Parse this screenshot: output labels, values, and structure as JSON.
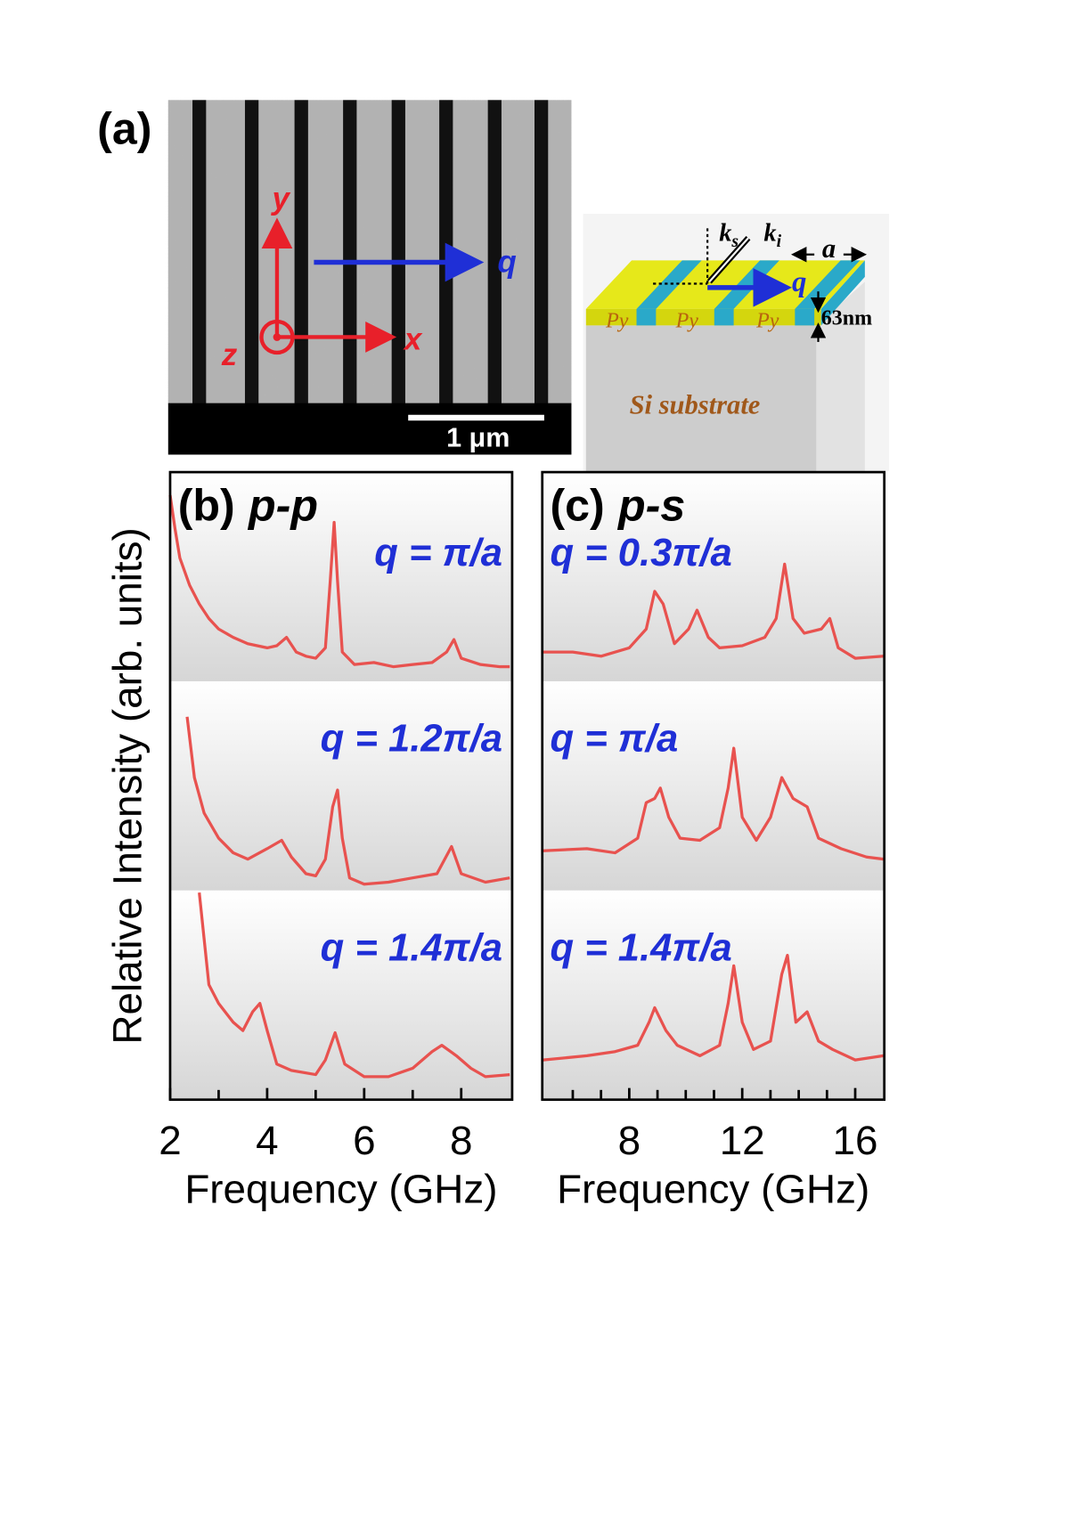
{
  "panel_a": {
    "label": "(a)",
    "scale_bar": "1 μm",
    "axis_x": "x",
    "axis_y": "y",
    "axis_z": "z",
    "wavevector": "q",
    "schematic": {
      "layer_labels": [
        "Py",
        "Py",
        "Py"
      ],
      "thickness": "63nm",
      "period": "a",
      "k_scattered": {
        "symbol": "k",
        "sub": "s"
      },
      "k_incident": {
        "symbol": "k",
        "sub": "i"
      },
      "wavevector": "q",
      "substrate": "Si substrate"
    }
  },
  "chart_data": [
    {
      "type": "line",
      "panel": "(b)",
      "title": "p-p",
      "xlabel": "Frequency (GHz)",
      "ylabel": "Relative Intensity (arb. units)",
      "xlim": [
        2,
        9.05
      ],
      "xticks": [
        2,
        4,
        6,
        8
      ],
      "xminorticks": [
        3,
        5,
        7
      ],
      "ylim": [
        0,
        1
      ],
      "series": [
        {
          "name": "q = π/a",
          "color": "#e8524f",
          "x": [
            2.0,
            2.1,
            2.2,
            2.4,
            2.6,
            2.8,
            3.0,
            3.3,
            3.6,
            4.0,
            4.2,
            4.4,
            4.6,
            4.8,
            5.0,
            5.2,
            5.3,
            5.38,
            5.45,
            5.55,
            5.8,
            6.2,
            6.6,
            7.0,
            7.4,
            7.7,
            7.85,
            8.0,
            8.4,
            8.8,
            9.0
          ],
          "values": [
            0.89,
            0.73,
            0.59,
            0.46,
            0.37,
            0.3,
            0.25,
            0.21,
            0.18,
            0.16,
            0.17,
            0.21,
            0.14,
            0.12,
            0.11,
            0.16,
            0.48,
            0.76,
            0.48,
            0.14,
            0.08,
            0.09,
            0.07,
            0.08,
            0.09,
            0.14,
            0.2,
            0.11,
            0.08,
            0.07,
            0.07
          ]
        },
        {
          "name": "q = 1.2π/a",
          "color": "#e8524f",
          "x": [
            2.35,
            2.5,
            2.7,
            3.0,
            3.3,
            3.6,
            4.0,
            4.3,
            4.5,
            4.8,
            5.0,
            5.2,
            5.35,
            5.45,
            5.55,
            5.7,
            6.0,
            6.5,
            7.0,
            7.5,
            7.8,
            8.0,
            8.5,
            9.0
          ],
          "values": [
            0.83,
            0.54,
            0.37,
            0.25,
            0.18,
            0.15,
            0.2,
            0.24,
            0.16,
            0.08,
            0.07,
            0.15,
            0.4,
            0.48,
            0.25,
            0.06,
            0.03,
            0.04,
            0.06,
            0.08,
            0.21,
            0.08,
            0.04,
            0.06
          ]
        },
        {
          "name": "q = 1.4π/a",
          "color": "#e8524f",
          "x": [
            2.6,
            2.8,
            3.0,
            3.3,
            3.5,
            3.7,
            3.85,
            4.0,
            4.2,
            4.5,
            5.0,
            5.2,
            5.4,
            5.6,
            6.0,
            6.5,
            7.0,
            7.4,
            7.6,
            7.9,
            8.2,
            8.5,
            9.0
          ],
          "values": [
            0.99,
            0.55,
            0.46,
            0.37,
            0.33,
            0.42,
            0.46,
            0.33,
            0.17,
            0.14,
            0.12,
            0.19,
            0.32,
            0.17,
            0.11,
            0.11,
            0.15,
            0.23,
            0.26,
            0.21,
            0.15,
            0.11,
            0.12
          ]
        }
      ]
    },
    {
      "type": "line",
      "panel": "(c)",
      "title": "p-s",
      "xlabel": "Frequency (GHz)",
      "xlim": [
        4.92,
        17.03
      ],
      "xticks": [
        8,
        12,
        16
      ],
      "xminorticks": [
        6,
        7,
        9,
        10,
        11,
        13,
        14,
        15
      ],
      "ylim": [
        0,
        1
      ],
      "series": [
        {
          "name": "q = 0.3π/a",
          "color": "#e8524f",
          "x": [
            4.95,
            6.0,
            7.0,
            8.0,
            8.6,
            8.9,
            9.2,
            9.6,
            10.1,
            10.4,
            10.8,
            11.2,
            12.0,
            12.8,
            13.2,
            13.5,
            13.8,
            14.2,
            14.8,
            15.1,
            15.4,
            16.0,
            17.0
          ],
          "values": [
            0.14,
            0.14,
            0.12,
            0.16,
            0.25,
            0.43,
            0.37,
            0.18,
            0.25,
            0.34,
            0.21,
            0.16,
            0.17,
            0.21,
            0.3,
            0.56,
            0.3,
            0.23,
            0.25,
            0.3,
            0.16,
            0.11,
            0.12
          ]
        },
        {
          "name": "q = π/a",
          "color": "#e8524f",
          "x": [
            4.95,
            6.5,
            7.5,
            8.3,
            8.6,
            8.9,
            9.1,
            9.4,
            9.8,
            10.5,
            11.2,
            11.5,
            11.7,
            12.0,
            12.5,
            13.0,
            13.4,
            13.8,
            14.3,
            14.7,
            15.5,
            16.4,
            17.0
          ],
          "values": [
            0.19,
            0.2,
            0.18,
            0.25,
            0.42,
            0.44,
            0.49,
            0.35,
            0.25,
            0.24,
            0.3,
            0.49,
            0.68,
            0.35,
            0.24,
            0.35,
            0.54,
            0.44,
            0.4,
            0.25,
            0.2,
            0.16,
            0.15
          ]
        },
        {
          "name": "q = 1.4π/a",
          "color": "#e8524f",
          "x": [
            4.95,
            6.5,
            7.5,
            8.3,
            8.7,
            8.9,
            9.3,
            9.7,
            10.5,
            11.2,
            11.5,
            11.7,
            12.0,
            12.4,
            13.0,
            13.4,
            13.6,
            13.9,
            14.3,
            14.7,
            15.2,
            16.0,
            17.0
          ],
          "values": [
            0.19,
            0.21,
            0.23,
            0.26,
            0.37,
            0.44,
            0.33,
            0.26,
            0.21,
            0.26,
            0.46,
            0.64,
            0.37,
            0.24,
            0.28,
            0.6,
            0.69,
            0.37,
            0.42,
            0.28,
            0.24,
            0.19,
            0.21
          ]
        }
      ]
    }
  ]
}
